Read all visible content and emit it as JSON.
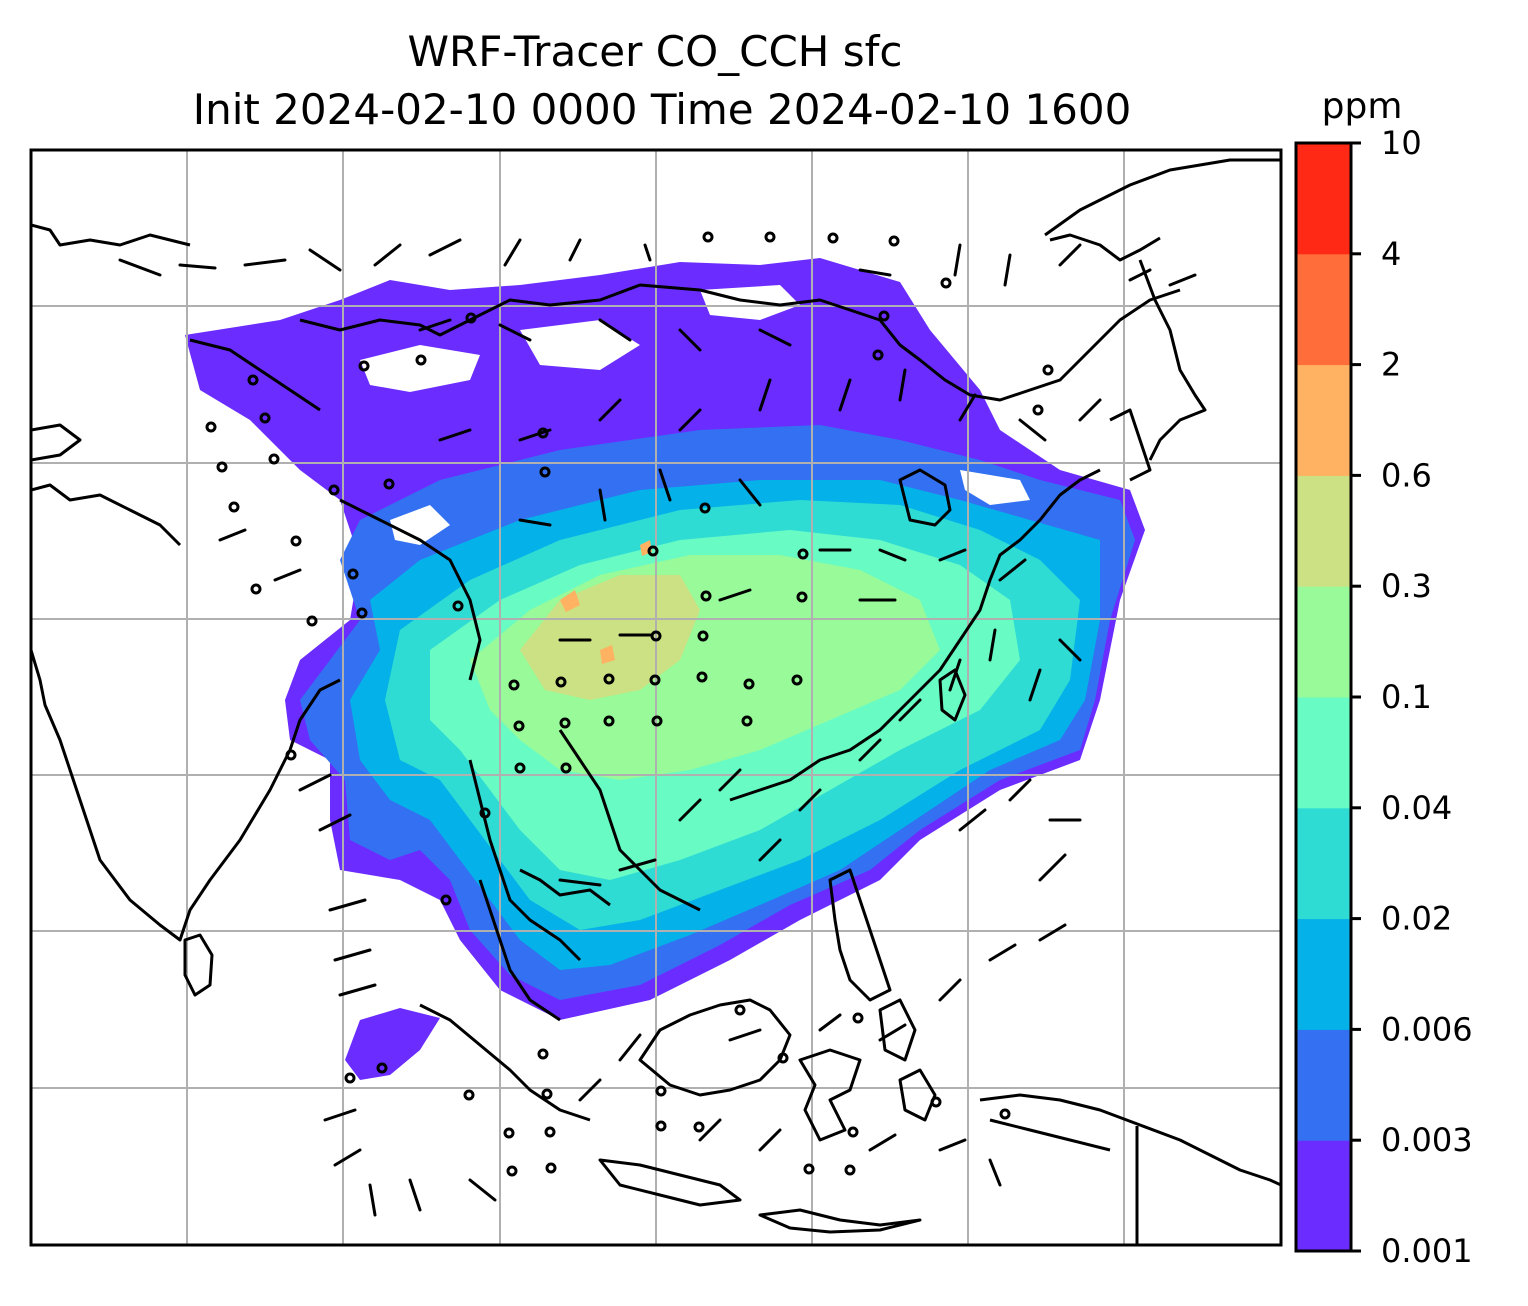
{
  "title": {
    "line1": "WRF-Tracer CO_CCH sfc",
    "line2": "Init 2024-02-10 0000 Time 2024-02-10 1600"
  },
  "colorbar": {
    "unit": "ppm",
    "ticks": [
      "0.001",
      "0.003",
      "0.006",
      "0.02",
      "0.04",
      "0.1",
      "0.3",
      "0.6",
      "2",
      "4",
      "10"
    ],
    "colors": [
      "#6a2cff",
      "#3371f2",
      "#04b1e9",
      "#2fdcd4",
      "#68fcc4",
      "#98fa98",
      "#cbe184",
      "#ffb262",
      "#ff6e3a",
      "#ff2916"
    ]
  },
  "map": {
    "variable": "CO_CCH",
    "level": "sfc",
    "units": "ppm",
    "gridlines": true,
    "features": [
      "coastlines",
      "country borders",
      "wind barbs",
      "calm-wind circles"
    ],
    "land_color": "#ffffff",
    "line_color": "#000000",
    "grid_color": "#b0b0b0"
  }
}
